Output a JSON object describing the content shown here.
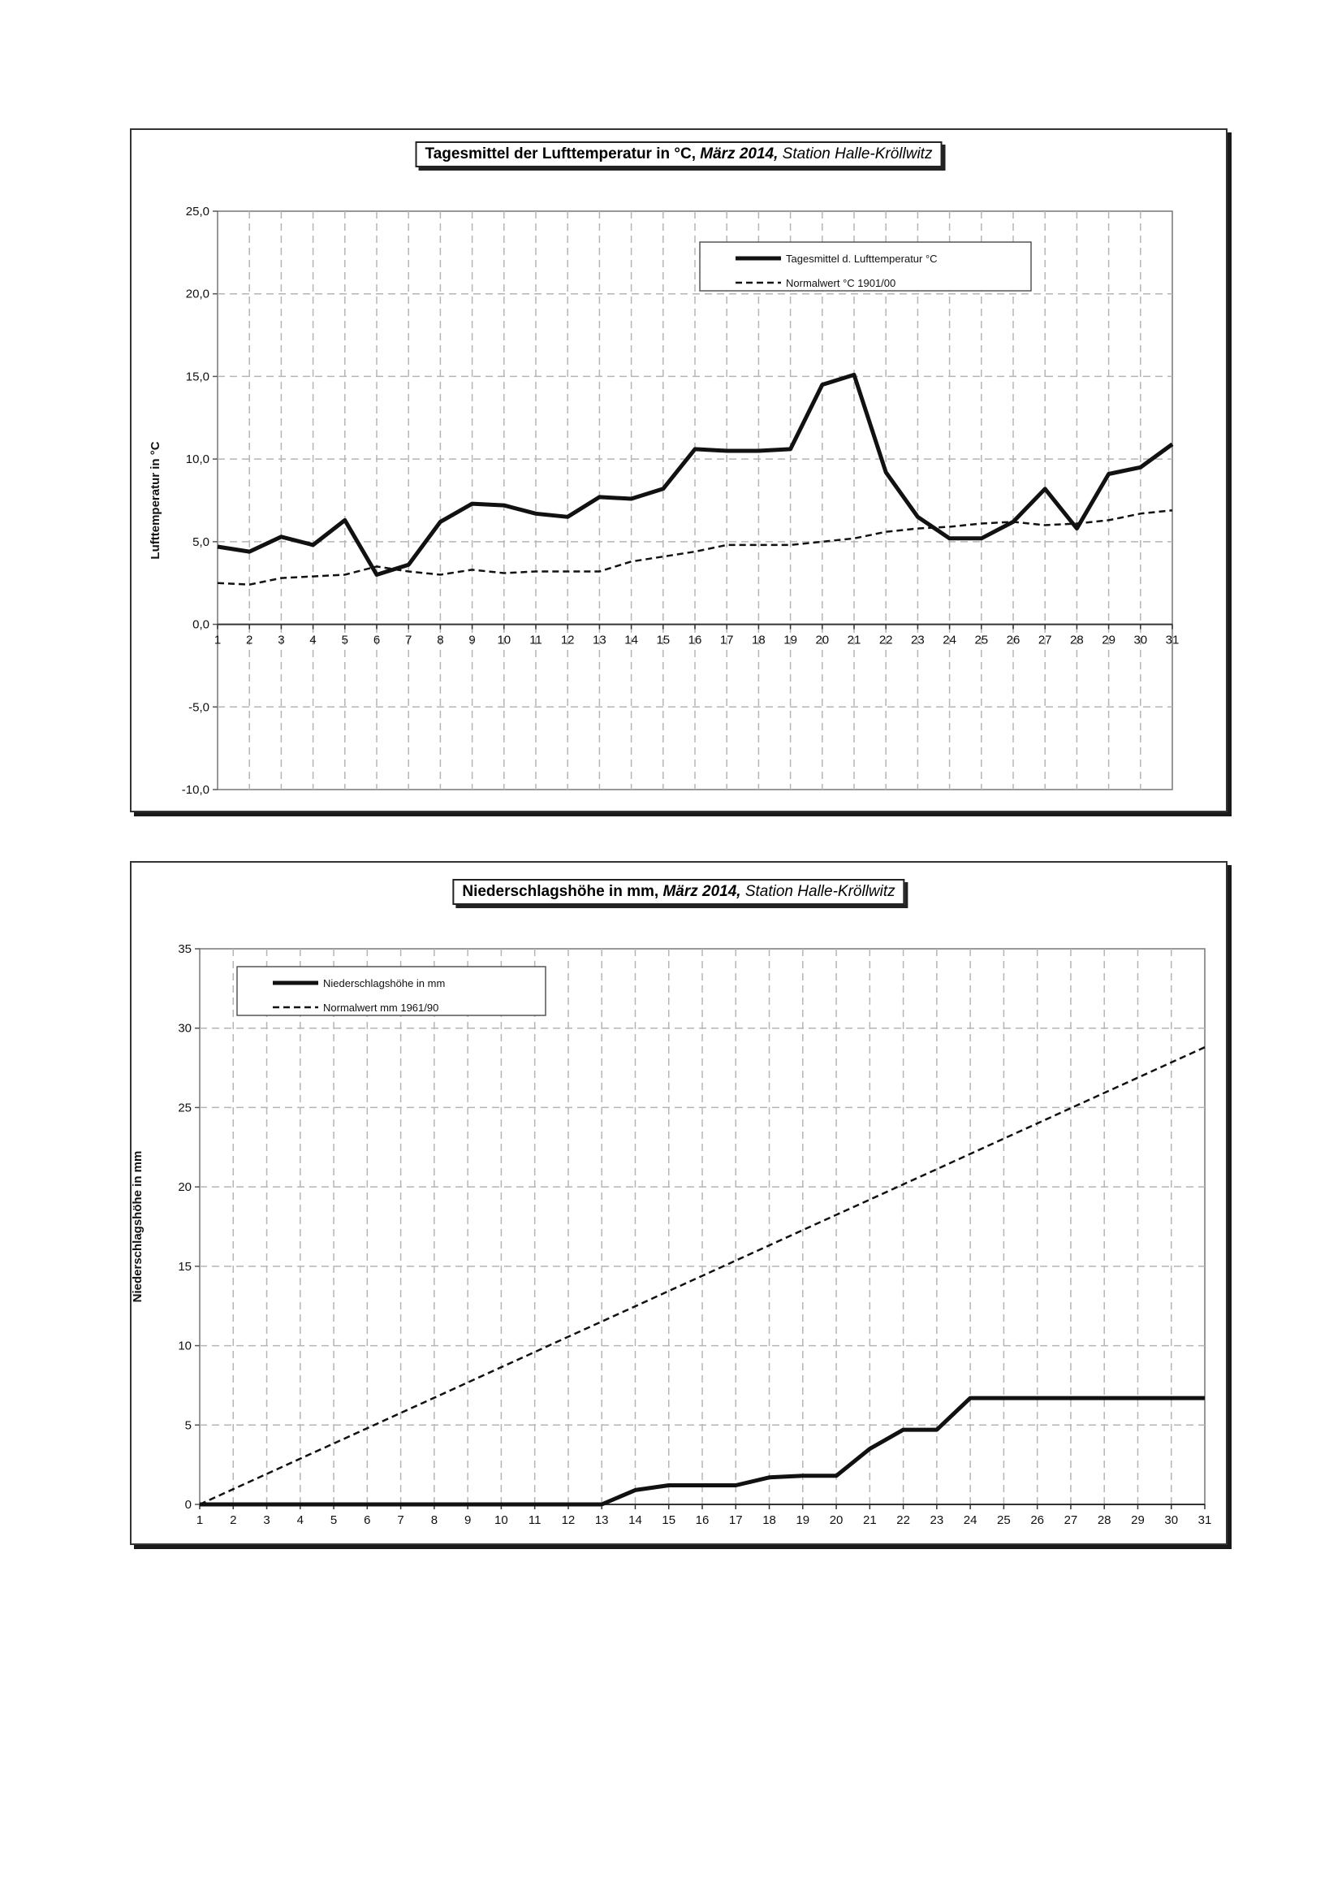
{
  "chart_data": [
    {
      "type": "line",
      "title_parts": {
        "bold": "Tagesmittel der Lufttemperatur  in °C,",
        "bold_italic": "März 2014,",
        "italic": "Station Halle-Kröllwitz"
      },
      "ylabel": "Lufttemperatur in °C",
      "xlabel": "",
      "ylim": [
        -10,
        25
      ],
      "y_ticks": [
        "25,0",
        "20,0",
        "15,0",
        "10,0",
        "5,0",
        "0,0",
        "-5,0",
        "-10,0"
      ],
      "y_tick_values": [
        25,
        20,
        15,
        10,
        5,
        0,
        -5,
        -10
      ],
      "x": [
        1,
        2,
        3,
        4,
        5,
        6,
        7,
        8,
        9,
        10,
        11,
        12,
        13,
        14,
        15,
        16,
        17,
        18,
        19,
        20,
        21,
        22,
        23,
        24,
        25,
        26,
        27,
        28,
        29,
        30,
        31
      ],
      "x_axis_at": 0,
      "grid": true,
      "legend_position": "top-right",
      "series": [
        {
          "name": "Tagesmittel d. Lufttemperatur °C",
          "style": "solid",
          "values": [
            4.7,
            4.4,
            5.3,
            4.8,
            6.3,
            3.0,
            3.6,
            6.2,
            7.3,
            7.2,
            6.7,
            6.5,
            7.7,
            7.6,
            8.2,
            10.6,
            10.5,
            10.5,
            10.6,
            14.5,
            15.1,
            9.2,
            6.5,
            5.2,
            5.2,
            6.2,
            8.2,
            5.8,
            9.1,
            9.5,
            10.9
          ]
        },
        {
          "name": "Normalwert °C 1901/00",
          "style": "dashed",
          "values": [
            2.5,
            2.4,
            2.8,
            2.9,
            3.0,
            3.5,
            3.2,
            3.0,
            3.3,
            3.1,
            3.2,
            3.2,
            3.2,
            3.8,
            4.1,
            4.4,
            4.8,
            4.8,
            4.8,
            5.0,
            5.2,
            5.6,
            5.8,
            5.9,
            6.1,
            6.2,
            6.0,
            6.1,
            6.3,
            6.7,
            6.9
          ]
        }
      ]
    },
    {
      "type": "line",
      "title_parts": {
        "bold": "Niederschlagshöhe in mm,",
        "bold_italic": "März 2014,",
        "italic": "Station Halle-Kröllwitz"
      },
      "ylabel": "Niederschlagshöhe in mm",
      "xlabel": "",
      "ylim": [
        0,
        35
      ],
      "y_ticks": [
        "35",
        "30",
        "25",
        "20",
        "15",
        "10",
        "5",
        "0"
      ],
      "y_tick_values": [
        35,
        30,
        25,
        20,
        15,
        10,
        5,
        0
      ],
      "x": [
        1,
        2,
        3,
        4,
        5,
        6,
        7,
        8,
        9,
        10,
        11,
        12,
        13,
        14,
        15,
        16,
        17,
        18,
        19,
        20,
        21,
        22,
        23,
        24,
        25,
        26,
        27,
        28,
        29,
        30,
        31
      ],
      "x_axis_at": 0,
      "grid": true,
      "legend_position": "top-left",
      "series": [
        {
          "name": "Niederschlagshöhe in mm",
          "style": "solid",
          "values": [
            0,
            0,
            0,
            0,
            0,
            0,
            0,
            0,
            0,
            0,
            0,
            0,
            0,
            0.9,
            1.2,
            1.2,
            1.2,
            1.7,
            1.8,
            1.8,
            3.5,
            4.7,
            4.7,
            6.7,
            6.7,
            6.7,
            6.7,
            6.7,
            6.7,
            6.7,
            6.7
          ]
        },
        {
          "name": "Normalwert mm 1961/90",
          "style": "dashed",
          "values": [
            0,
            0.96,
            1.92,
            2.88,
            3.84,
            4.8,
            5.76,
            6.72,
            7.68,
            8.64,
            9.6,
            10.56,
            11.52,
            12.48,
            13.44,
            14.4,
            15.36,
            16.32,
            17.28,
            18.24,
            19.2,
            20.16,
            21.12,
            22.08,
            23.04,
            24.0,
            24.96,
            25.92,
            26.88,
            27.84,
            28.8
          ]
        }
      ]
    }
  ]
}
